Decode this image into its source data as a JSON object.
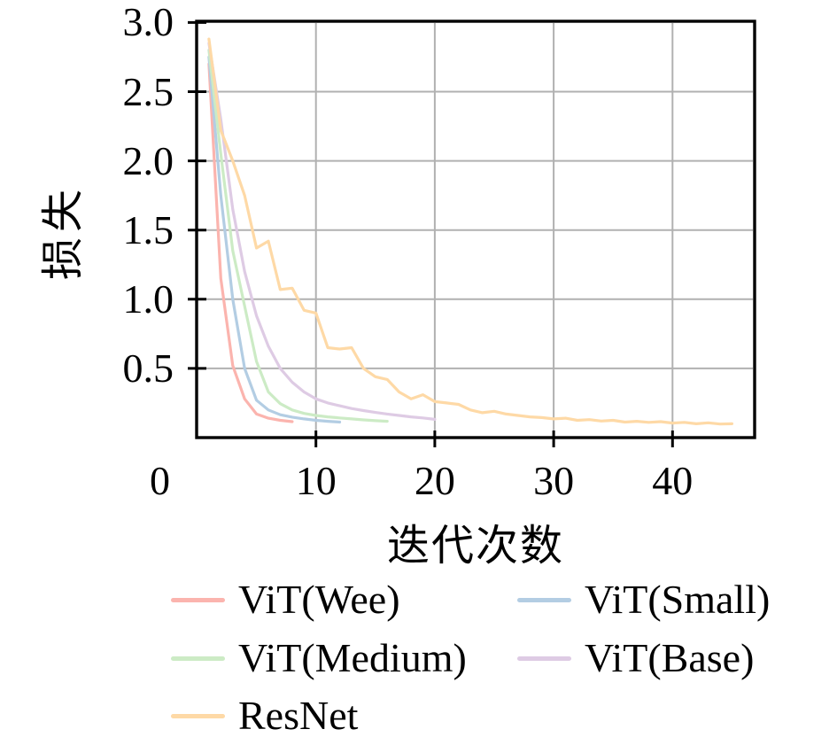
{
  "figure": {
    "background": "#ffffff",
    "text_color": "#000000",
    "spine_color": "#000000",
    "grid_color": "#b1b1b1"
  },
  "chart_data": {
    "type": "line",
    "title": "",
    "xlabel": "迭代次数",
    "ylabel": "损失",
    "xlim": [
      0,
      47
    ],
    "ylim": [
      0,
      3.0
    ],
    "grid": true,
    "legend_position": "below-plot-two-columns",
    "xticks": {
      "values": [
        0,
        10,
        20,
        30,
        40
      ],
      "labels": [
        "0",
        "10",
        "20",
        "30",
        "40"
      ]
    },
    "yticks": {
      "values": [
        0.5,
        1.0,
        1.5,
        2.0,
        2.5,
        3.0
      ],
      "labels": [
        "0.5",
        "1.0",
        "1.5",
        "2.0",
        "2.5",
        "3.0"
      ]
    },
    "series": [
      {
        "name": "ViT(Wee)",
        "color": "#fbb4ae",
        "x_start": 1,
        "values": [
          2.7,
          1.15,
          0.52,
          0.28,
          0.17,
          0.14,
          0.125,
          0.115
        ]
      },
      {
        "name": "ViT(Small)",
        "color": "#b3cde3",
        "x_start": 1,
        "values": [
          2.75,
          1.75,
          1.0,
          0.5,
          0.27,
          0.2,
          0.165,
          0.148,
          0.135,
          0.125,
          0.118,
          0.112
        ]
      },
      {
        "name": "ViT(Medium)",
        "color": "#ccebc5",
        "x_start": 1,
        "values": [
          2.8,
          2.05,
          1.35,
          0.95,
          0.55,
          0.33,
          0.245,
          0.2,
          0.175,
          0.16,
          0.15,
          0.142,
          0.135,
          0.128,
          0.122,
          0.118
        ]
      },
      {
        "name": "ViT(Base)",
        "color": "#decbe4",
        "x_start": 1,
        "values": [
          2.85,
          2.3,
          1.65,
          1.2,
          0.88,
          0.66,
          0.5,
          0.4,
          0.33,
          0.28,
          0.25,
          0.23,
          0.21,
          0.195,
          0.182,
          0.17,
          0.16,
          0.15,
          0.142,
          0.132
        ]
      },
      {
        "name": "ResNet",
        "color": "#fed9a6",
        "x_start": 1,
        "values": [
          2.88,
          2.22,
          2.0,
          1.75,
          1.37,
          1.42,
          1.07,
          1.08,
          0.92,
          0.9,
          0.65,
          0.64,
          0.65,
          0.5,
          0.44,
          0.42,
          0.33,
          0.28,
          0.31,
          0.26,
          0.25,
          0.24,
          0.2,
          0.18,
          0.19,
          0.17,
          0.16,
          0.15,
          0.145,
          0.135,
          0.14,
          0.125,
          0.13,
          0.12,
          0.125,
          0.112,
          0.118,
          0.11,
          0.115,
          0.105,
          0.11,
          0.1,
          0.107,
          0.098,
          0.1
        ]
      }
    ]
  }
}
